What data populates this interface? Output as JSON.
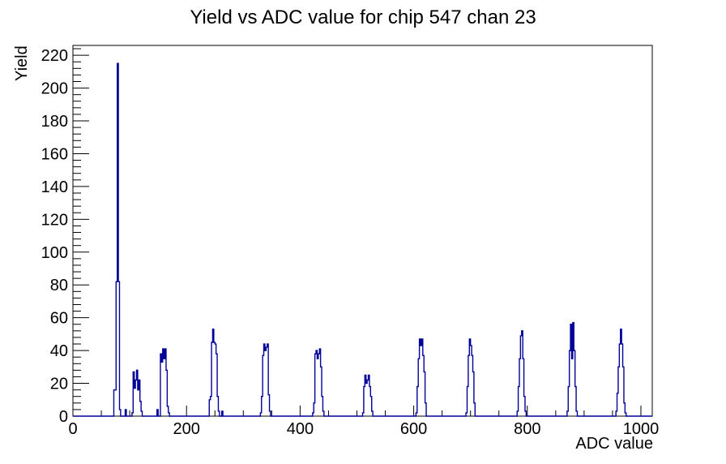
{
  "page": {
    "background_color": "#ffffff"
  },
  "chart_data": {
    "type": "bar",
    "subtype": "step-histogram",
    "title": "Yield vs ADC value for chip 547 chan 23",
    "xlabel": "ADC value",
    "ylabel": "Yield",
    "xlim": [
      0,
      1020
    ],
    "ylim": [
      0,
      226
    ],
    "grid": false,
    "legend": false,
    "x_ticks": {
      "major_step": 200,
      "minor_step": 50,
      "labels": [
        "0",
        "200",
        "400",
        "600",
        "800",
        "1000"
      ],
      "label_values": [
        0,
        200,
        400,
        600,
        800,
        1000
      ]
    },
    "y_ticks": {
      "major_step": 20,
      "minor_step": 4,
      "labels": [
        "0",
        "20",
        "40",
        "60",
        "80",
        "100",
        "120",
        "140",
        "160",
        "180",
        "200",
        "220"
      ],
      "label_values": [
        0,
        20,
        40,
        60,
        80,
        100,
        120,
        140,
        160,
        180,
        200,
        220
      ]
    },
    "histogram_line_color": "#000099",
    "axis_color": "#000000",
    "bin_width_adc": 2,
    "peak_summary": {
      "centers_adc": [
        80,
        112,
        158,
        248,
        340,
        432,
        518,
        612,
        700,
        790,
        880,
        966
      ],
      "max_yields": [
        215,
        28,
        41,
        53,
        44,
        41,
        25,
        47,
        47,
        52,
        57,
        53
      ]
    },
    "bins": [
      [
        72,
        16
      ],
      [
        74,
        16
      ],
      [
        76,
        82
      ],
      [
        78,
        215
      ],
      [
        80,
        82
      ],
      [
        82,
        4
      ],
      [
        92,
        4
      ],
      [
        104,
        2
      ],
      [
        106,
        27
      ],
      [
        108,
        17
      ],
      [
        110,
        22
      ],
      [
        112,
        28
      ],
      [
        114,
        16
      ],
      [
        116,
        22
      ],
      [
        118,
        9
      ],
      [
        120,
        3
      ],
      [
        148,
        4
      ],
      [
        154,
        38
      ],
      [
        156,
        33
      ],
      [
        158,
        41
      ],
      [
        160,
        35
      ],
      [
        162,
        41
      ],
      [
        164,
        28
      ],
      [
        166,
        6
      ],
      [
        168,
        2
      ],
      [
        240,
        10
      ],
      [
        242,
        12
      ],
      [
        244,
        45
      ],
      [
        246,
        53
      ],
      [
        248,
        45
      ],
      [
        250,
        44
      ],
      [
        252,
        38
      ],
      [
        254,
        12
      ],
      [
        256,
        3
      ],
      [
        262,
        3
      ],
      [
        330,
        2
      ],
      [
        332,
        12
      ],
      [
        334,
        37
      ],
      [
        336,
        44
      ],
      [
        338,
        40
      ],
      [
        340,
        42
      ],
      [
        342,
        44
      ],
      [
        344,
        13
      ],
      [
        346,
        3
      ],
      [
        422,
        2
      ],
      [
        424,
        8
      ],
      [
        426,
        38
      ],
      [
        428,
        40
      ],
      [
        430,
        35
      ],
      [
        432,
        38
      ],
      [
        434,
        41
      ],
      [
        436,
        30
      ],
      [
        438,
        12
      ],
      [
        440,
        3
      ],
      [
        510,
        2
      ],
      [
        512,
        18
      ],
      [
        514,
        25
      ],
      [
        516,
        20
      ],
      [
        518,
        22
      ],
      [
        520,
        25
      ],
      [
        522,
        18
      ],
      [
        524,
        12
      ],
      [
        526,
        3
      ],
      [
        604,
        2
      ],
      [
        606,
        18
      ],
      [
        608,
        35
      ],
      [
        610,
        47
      ],
      [
        612,
        43
      ],
      [
        614,
        47
      ],
      [
        616,
        37
      ],
      [
        618,
        27
      ],
      [
        620,
        8
      ],
      [
        692,
        2
      ],
      [
        694,
        18
      ],
      [
        696,
        37
      ],
      [
        698,
        47
      ],
      [
        700,
        43
      ],
      [
        702,
        37
      ],
      [
        704,
        27
      ],
      [
        706,
        8
      ],
      [
        782,
        3
      ],
      [
        784,
        18
      ],
      [
        786,
        35
      ],
      [
        788,
        49
      ],
      [
        790,
        52
      ],
      [
        792,
        35
      ],
      [
        794,
        12
      ],
      [
        796,
        3
      ],
      [
        870,
        3
      ],
      [
        872,
        18
      ],
      [
        874,
        40
      ],
      [
        876,
        56
      ],
      [
        878,
        35
      ],
      [
        880,
        57
      ],
      [
        882,
        40
      ],
      [
        884,
        18
      ],
      [
        886,
        3
      ],
      [
        956,
        3
      ],
      [
        958,
        14
      ],
      [
        960,
        30
      ],
      [
        962,
        44
      ],
      [
        964,
        53
      ],
      [
        966,
        44
      ],
      [
        968,
        30
      ],
      [
        970,
        8
      ],
      [
        972,
        2
      ]
    ]
  }
}
